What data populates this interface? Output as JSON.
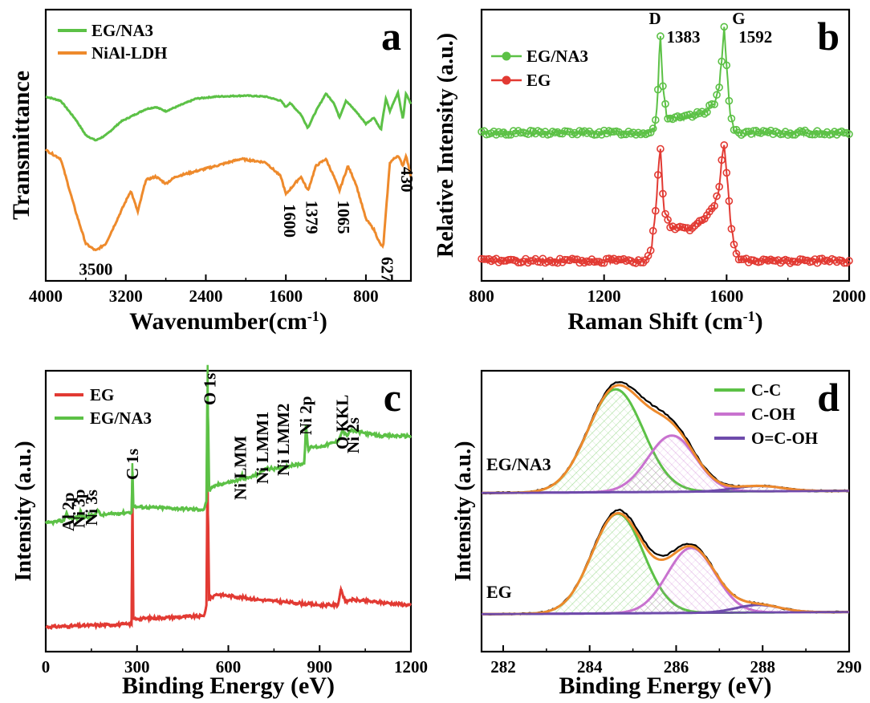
{
  "colors": {
    "green": "#5cc146",
    "orange": "#ee8a2c",
    "red": "#e23a33",
    "pink": "#c872cf",
    "purple": "#6e4bab",
    "black": "#000000"
  },
  "chart_data": [
    {
      "id": "a",
      "type": "line",
      "panel_label": "a",
      "xlabel": "Wavenumber(cm",
      "xlabel_unit_sup": "-1",
      "xlabel_close": ")",
      "ylabel": "Transmittance",
      "xlim": [
        4000,
        350
      ],
      "x_reversed": true,
      "xticks": [
        4000,
        3200,
        2400,
        1600,
        800
      ],
      "xtick_labels": [
        "4000",
        "3200",
        "2400",
        "1600",
        "800"
      ],
      "y_ticks_shown": false,
      "legend_position": "top-left",
      "series": [
        {
          "name": "EG/NA3",
          "color": "green",
          "offset": 1.0,
          "points": [
            [
              4000,
              0.92
            ],
            [
              3850,
              0.88
            ],
            [
              3700,
              0.7
            ],
            [
              3600,
              0.55
            ],
            [
              3500,
              0.5
            ],
            [
              3400,
              0.55
            ],
            [
              3250,
              0.68
            ],
            [
              3000,
              0.8
            ],
            [
              2900,
              0.82
            ],
            [
              2800,
              0.78
            ],
            [
              2700,
              0.82
            ],
            [
              2500,
              0.9
            ],
            [
              2300,
              0.92
            ],
            [
              2000,
              0.93
            ],
            [
              1800,
              0.92
            ],
            [
              1650,
              0.88
            ],
            [
              1600,
              0.82
            ],
            [
              1560,
              0.86
            ],
            [
              1450,
              0.75
            ],
            [
              1380,
              0.62
            ],
            [
              1300,
              0.78
            ],
            [
              1200,
              0.95
            ],
            [
              1120,
              0.86
            ],
            [
              1065,
              0.72
            ],
            [
              1000,
              0.88
            ],
            [
              900,
              0.78
            ],
            [
              800,
              0.66
            ],
            [
              720,
              0.72
            ],
            [
              650,
              0.6
            ],
            [
              600,
              0.9
            ],
            [
              560,
              0.78
            ],
            [
              480,
              0.96
            ],
            [
              430,
              0.7
            ],
            [
              400,
              0.95
            ],
            [
              350,
              0.85
            ]
          ]
        },
        {
          "name": "NiAl-LDH",
          "color": "orange",
          "offset": 0.0,
          "points": [
            [
              4000,
              0.95
            ],
            [
              3850,
              0.9
            ],
            [
              3700,
              0.6
            ],
            [
              3600,
              0.42
            ],
            [
              3500,
              0.38
            ],
            [
              3400,
              0.42
            ],
            [
              3250,
              0.6
            ],
            [
              3150,
              0.72
            ],
            [
              3080,
              0.6
            ],
            [
              3000,
              0.78
            ],
            [
              2900,
              0.8
            ],
            [
              2800,
              0.76
            ],
            [
              2700,
              0.8
            ],
            [
              2300,
              0.86
            ],
            [
              2050,
              0.9
            ],
            [
              1800,
              0.88
            ],
            [
              1650,
              0.8
            ],
            [
              1600,
              0.7
            ],
            [
              1540,
              0.74
            ],
            [
              1450,
              0.8
            ],
            [
              1379,
              0.72
            ],
            [
              1300,
              0.86
            ],
            [
              1200,
              0.9
            ],
            [
              1120,
              0.8
            ],
            [
              1065,
              0.72
            ],
            [
              980,
              0.86
            ],
            [
              900,
              0.76
            ],
            [
              800,
              0.56
            ],
            [
              720,
              0.5
            ],
            [
              660,
              0.42
            ],
            [
              627,
              0.4
            ],
            [
              560,
              0.88
            ],
            [
              480,
              0.92
            ],
            [
              430,
              0.86
            ],
            [
              400,
              0.92
            ],
            [
              350,
              0.8
            ]
          ]
        }
      ],
      "annotations": [
        {
          "text": "3500",
          "x": 3500,
          "series": "NiAl-LDH",
          "rotate": 0
        },
        {
          "text": "1600",
          "x": 1600,
          "series": "NiAl-LDH",
          "rotate": 90
        },
        {
          "text": "1379",
          "x": 1379,
          "series": "NiAl-LDH",
          "rotate": 90
        },
        {
          "text": "1065",
          "x": 1065,
          "series": "NiAl-LDH",
          "rotate": 90
        },
        {
          "text": "627",
          "x": 627,
          "series": "NiAl-LDH",
          "rotate": 90
        },
        {
          "text": "430",
          "x": 430,
          "series": "NiAl-LDH",
          "rotate": 90
        }
      ]
    },
    {
      "id": "b",
      "type": "line",
      "panel_label": "b",
      "xlabel": "Raman Shift (cm",
      "xlabel_unit_sup": "-1",
      "xlabel_close": ")",
      "ylabel": "Relative Intensity (a.u.)",
      "xlim": [
        800,
        2000
      ],
      "xticks": [
        800,
        1200,
        1600,
        2000
      ],
      "xtick_labels": [
        "800",
        "1200",
        "1600",
        "2000"
      ],
      "y_ticks_shown": false,
      "legend_position": "top-left",
      "markers": "circle",
      "series": [
        {
          "name": "EG/NA3",
          "color": "green",
          "baseline": 0.55,
          "points": [
            [
              800,
              0.55
            ],
            [
              1340,
              0.55
            ],
            [
              1365,
              0.57
            ],
            [
              1375,
              0.7
            ],
            [
              1383,
              1.0
            ],
            [
              1392,
              0.75
            ],
            [
              1405,
              0.62
            ],
            [
              1430,
              0.61
            ],
            [
              1480,
              0.62
            ],
            [
              1530,
              0.64
            ],
            [
              1560,
              0.68
            ],
            [
              1575,
              0.74
            ],
            [
              1585,
              0.88
            ],
            [
              1592,
              1.0
            ],
            [
              1600,
              0.84
            ],
            [
              1612,
              0.62
            ],
            [
              1625,
              0.56
            ],
            [
              1640,
              0.55
            ],
            [
              2000,
              0.55
            ]
          ]
        },
        {
          "name": "EG",
          "color": "red",
          "baseline": 0.0,
          "points": [
            [
              800,
              0.0
            ],
            [
              1340,
              0.0
            ],
            [
              1355,
              0.06
            ],
            [
              1370,
              0.24
            ],
            [
              1383,
              0.5
            ],
            [
              1395,
              0.22
            ],
            [
              1420,
              0.14
            ],
            [
              1480,
              0.14
            ],
            [
              1530,
              0.18
            ],
            [
              1560,
              0.24
            ],
            [
              1575,
              0.3
            ],
            [
              1585,
              0.44
            ],
            [
              1592,
              0.5
            ],
            [
              1600,
              0.38
            ],
            [
              1615,
              0.14
            ],
            [
              1630,
              0.04
            ],
            [
              1645,
              0.0
            ],
            [
              2000,
              0.0
            ]
          ]
        }
      ],
      "annotations": [
        {
          "text": "D",
          "x": 1383
        },
        {
          "text": "1383",
          "x": 1383
        },
        {
          "text": "G",
          "x": 1592
        },
        {
          "text": "1592",
          "x": 1592
        }
      ]
    },
    {
      "id": "c",
      "type": "line",
      "panel_label": "c",
      "xlabel": "Binding Energy (eV)",
      "ylabel": "Intensity (a.u.)",
      "xlim": [
        0,
        1200
      ],
      "xticks": [
        0,
        300,
        600,
        900,
        1200
      ],
      "xtick_labels": [
        "0",
        "300",
        "600",
        "900",
        "1200"
      ],
      "y_ticks_shown": false,
      "legend_position": "top-left",
      "series": [
        {
          "name": "EG",
          "color": "red",
          "points": [
            [
              0,
              0.02
            ],
            [
              270,
              0.03
            ],
            [
              282,
              0.03
            ],
            [
              284.5,
              0.6
            ],
            [
              287,
              0.05
            ],
            [
              300,
              0.05
            ],
            [
              520,
              0.06
            ],
            [
              528,
              0.1
            ],
            [
              532,
              0.64
            ],
            [
              536,
              0.12
            ],
            [
              560,
              0.14
            ],
            [
              700,
              0.12
            ],
            [
              900,
              0.1
            ],
            [
              960,
              0.1
            ],
            [
              970,
              0.16
            ],
            [
              985,
              0.11
            ],
            [
              1000,
              0.12
            ],
            [
              1200,
              0.1
            ]
          ]
        },
        {
          "name": "EG/NA3",
          "color": "green",
          "points": [
            [
              0,
              0.4
            ],
            [
              60,
              0.41
            ],
            [
              68,
              0.44
            ],
            [
              75,
              0.42
            ],
            [
              110,
              0.42
            ],
            [
              115,
              0.45
            ],
            [
              120,
              0.42
            ],
            [
              160,
              0.43
            ],
            [
              170,
              0.45
            ],
            [
              180,
              0.43
            ],
            [
              270,
              0.44
            ],
            [
              282,
              0.44
            ],
            [
              284.5,
              0.62
            ],
            [
              287,
              0.46
            ],
            [
              300,
              0.46
            ],
            [
              520,
              0.45
            ],
            [
              528,
              0.48
            ],
            [
              532,
              0.98
            ],
            [
              536,
              0.52
            ],
            [
              560,
              0.54
            ],
            [
              640,
              0.56
            ],
            [
              645,
              0.58
            ],
            [
              650,
              0.56
            ],
            [
              700,
              0.58
            ],
            [
              720,
              0.6
            ],
            [
              760,
              0.6
            ],
            [
              800,
              0.61
            ],
            [
              850,
              0.62
            ],
            [
              855,
              0.76
            ],
            [
              862,
              0.67
            ],
            [
              875,
              0.68
            ],
            [
              900,
              0.68
            ],
            [
              960,
              0.7
            ],
            [
              975,
              0.74
            ],
            [
              990,
              0.72
            ],
            [
              1000,
              0.74
            ],
            [
              1100,
              0.72
            ],
            [
              1200,
              0.72
            ]
          ]
        }
      ],
      "annotations": [
        {
          "text": "Al 2p",
          "x": 74,
          "rotate": -90
        },
        {
          "text": "Ni 3p",
          "x": 110,
          "rotate": -90
        },
        {
          "text": "Ni 3s",
          "x": 150,
          "rotate": -90
        },
        {
          "text": "C 1s",
          "x": 284.5,
          "rotate": -90
        },
        {
          "text": "O 1s",
          "x": 532,
          "rotate": -90
        },
        {
          "text": "Ni LMM",
          "x": 640,
          "rotate": -90
        },
        {
          "text": "Ni LMM1",
          "x": 712,
          "rotate": -90
        },
        {
          "text": "Ni LMM2",
          "x": 780,
          "rotate": -90
        },
        {
          "text": "Ni 2p",
          "x": 855,
          "rotate": -90
        },
        {
          "text": "O KKL",
          "x": 975,
          "rotate": -90
        },
        {
          "text": "Ni 2s",
          "x": 1010,
          "rotate": -90
        }
      ]
    },
    {
      "id": "d",
      "type": "area",
      "panel_label": "d",
      "xlabel": "Binding Energy (eV)",
      "ylabel": "Intensity (a.u.)",
      "xlim": [
        281.5,
        290
      ],
      "xticks": [
        282,
        284,
        286,
        288,
        290
      ],
      "xtick_labels": [
        "282",
        "284",
        "286",
        "288",
        "290"
      ],
      "y_ticks_shown": false,
      "legend_position": "top-right",
      "legend": [
        {
          "name": "C-C",
          "color": "green"
        },
        {
          "name": "C-OH",
          "color": "pink"
        },
        {
          "name": "O=C-OH",
          "color": "purple"
        }
      ],
      "spectra": [
        {
          "label": "EG/NA3",
          "offset": 1.0,
          "components": [
            {
              "name": "C-C",
              "color": "green",
              "center": 284.6,
              "height": 0.95,
              "fwhm": 1.5
            },
            {
              "name": "C-OH",
              "color": "pink",
              "center": 285.9,
              "height": 0.52,
              "fwhm": 1.3
            },
            {
              "name": "O=C-OH",
              "color": "purple",
              "center": 287.9,
              "height": 0.05,
              "fwhm": 1.3
            }
          ]
        },
        {
          "label": "EG",
          "offset": 0.0,
          "components": [
            {
              "name": "C-C",
              "color": "green",
              "center": 284.65,
              "height": 0.92,
              "fwhm": 1.4
            },
            {
              "name": "C-OH",
              "color": "pink",
              "center": 286.35,
              "height": 0.6,
              "fwhm": 1.3
            },
            {
              "name": "O=C-OH",
              "color": "purple",
              "center": 287.9,
              "height": 0.07,
              "fwhm": 1.2
            }
          ]
        }
      ]
    }
  ]
}
